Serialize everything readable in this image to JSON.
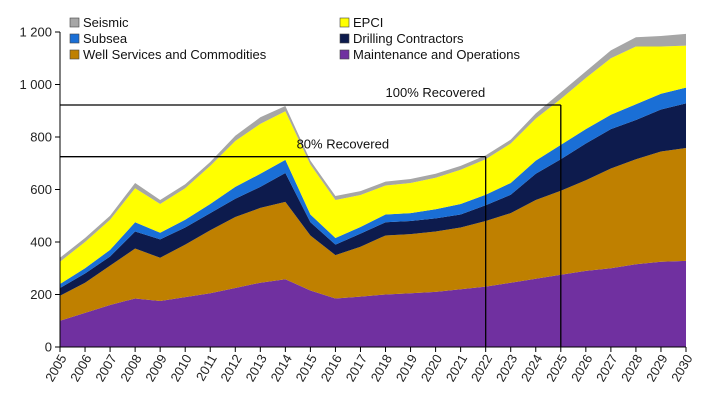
{
  "chart_data": {
    "type": "area",
    "stacked": true,
    "title": "",
    "xlabel": "",
    "ylabel": "",
    "x": [
      "2005",
      "2006",
      "2007",
      "2008",
      "2009",
      "2010",
      "2011",
      "2012",
      "2013",
      "2014",
      "2015",
      "2016",
      "2017",
      "2018",
      "2019",
      "2020",
      "2021",
      "2022",
      "2023",
      "2024",
      "2025",
      "2026",
      "2027",
      "2028",
      "2029",
      "2030"
    ],
    "ylim": [
      0,
      1200
    ],
    "yticks": [
      0,
      200,
      400,
      600,
      800,
      1000,
      1200
    ],
    "ytick_labels": [
      "0",
      "200",
      "400",
      "600",
      "800",
      "1 000",
      "1 200"
    ],
    "grid": false,
    "legend_position": "top-left",
    "series": [
      {
        "name": "Maintenance and Operations",
        "color": "#7030a0",
        "values": [
          100,
          130,
          160,
          185,
          175,
          190,
          205,
          225,
          245,
          258,
          215,
          185,
          192,
          200,
          205,
          210,
          220,
          230,
          245,
          260,
          275,
          290,
          300,
          315,
          325,
          328
        ]
      },
      {
        "name": "Well Services and Commodities",
        "color": "#bf8000",
        "values": [
          95,
          115,
          150,
          190,
          165,
          200,
          240,
          270,
          285,
          295,
          210,
          165,
          190,
          225,
          225,
          230,
          235,
          250,
          265,
          300,
          320,
          345,
          380,
          400,
          420,
          430
        ]
      },
      {
        "name": "Drilling Contractors",
        "color": "#0d1b4d",
        "values": [
          30,
          35,
          35,
          65,
          70,
          65,
          65,
          70,
          80,
          110,
          50,
          40,
          50,
          50,
          50,
          50,
          50,
          60,
          70,
          100,
          120,
          140,
          150,
          150,
          160,
          170
        ]
      },
      {
        "name": "Subsea",
        "color": "#1a6fd6",
        "values": [
          15,
          20,
          25,
          35,
          25,
          30,
          35,
          45,
          50,
          50,
          30,
          25,
          25,
          30,
          30,
          35,
          40,
          40,
          45,
          50,
          55,
          55,
          55,
          60,
          60,
          60
        ]
      },
      {
        "name": "EPCI",
        "color": "#ffff00",
        "values": [
          85,
          100,
          115,
          130,
          110,
          120,
          145,
          175,
          190,
          185,
          190,
          145,
          122,
          110,
          115,
          120,
          130,
          135,
          150,
          160,
          175,
          195,
          215,
          220,
          180,
          160
        ]
      },
      {
        "name": "Seismic",
        "color": "#a6a6a6",
        "values": [
          15,
          15,
          15,
          20,
          15,
          15,
          15,
          20,
          25,
          20,
          15,
          15,
          15,
          15,
          15,
          15,
          15,
          15,
          15,
          20,
          25,
          25,
          30,
          35,
          40,
          45
        ]
      }
    ],
    "reference_lines": [
      {
        "label": "100% Recovered",
        "y": 922,
        "x_start": "2005",
        "x_end": "2025"
      },
      {
        "label": "80% Recovered",
        "y": 725,
        "x_start": "2005",
        "x_end": "2022"
      }
    ],
    "marker_lines": [
      {
        "x": "2022"
      },
      {
        "x": "2025"
      }
    ]
  }
}
